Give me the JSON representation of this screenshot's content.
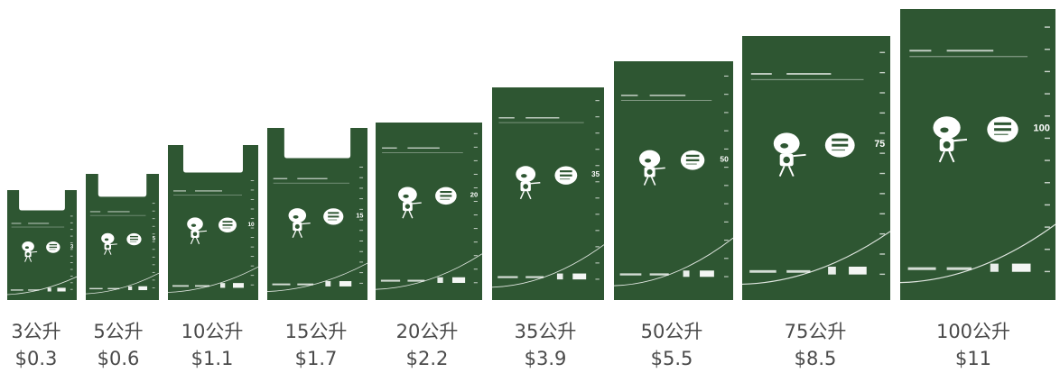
{
  "colors": {
    "bag": "#2e5632",
    "bag_dark": "#264a2a",
    "ink": "#ffffff",
    "text": "#4a4a4a"
  },
  "bags": [
    {
      "capacity": "3公升",
      "price": "$0.3",
      "num": "3",
      "slogan_zh": "棄少啲 慳多啲",
      "slogan_en": "Dump Less Save More",
      "ref_title": "Reference Capacity"
    },
    {
      "capacity": "5公升",
      "price": "$0.6",
      "num": "5",
      "slogan_zh": "棄少啲 慳多啲",
      "slogan_en": "Dump Less Save More",
      "ref_title": "Reference Capacity"
    },
    {
      "capacity": "10公升",
      "price": "$1.1",
      "num": "10",
      "slogan_zh": "棄少啲 慳多啲",
      "slogan_en": "Dump Less Save More",
      "ref_title": "Reference Capacity"
    },
    {
      "capacity": "15公升",
      "price": "$1.7",
      "num": "15",
      "slogan_zh": "棄少啲 慳多啲",
      "slogan_en": "Dump Less Save More",
      "ref_title": "Reference Capacity"
    },
    {
      "capacity": "20公升",
      "price": "$2.2",
      "num": "20",
      "slogan_zh": "棄少啲 慳多啲",
      "slogan_en": "Dump Less Save More",
      "ref_title": "Reference Capacity"
    },
    {
      "capacity": "35公升",
      "price": "$3.9",
      "num": "35",
      "slogan_zh": "棄少啲 慳多啲",
      "slogan_en": "Dump Less Save More",
      "ref_title": "Reference Capacity"
    },
    {
      "capacity": "50公升",
      "price": "$5.5",
      "num": "50",
      "slogan_zh": "棄少啲 慳多啲",
      "slogan_en": "Dump Less Save More",
      "ref_title": "Reference Capacity"
    },
    {
      "capacity": "75公升",
      "price": "$8.5",
      "num": "75",
      "slogan_zh": "棄少啲 慳多啲",
      "slogan_en": "Dump Less Save More",
      "ref_title": "Reference Capacity"
    },
    {
      "capacity": "100公升",
      "price": "$11",
      "num": "100",
      "slogan_zh": "棄少啲 慳多啲",
      "slogan_en": "Dump Less Save More",
      "ref_title": "Reference Capacity"
    }
  ]
}
